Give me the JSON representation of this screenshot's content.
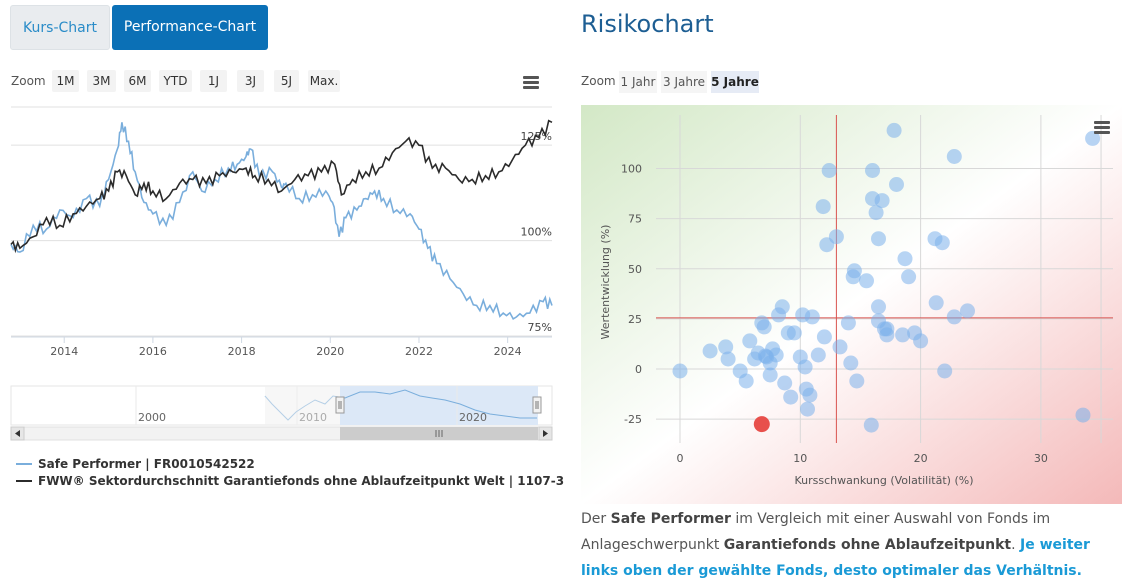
{
  "tabs": {
    "kurs": "Kurs-Chart",
    "performance": "Performance-Chart"
  },
  "perf_zoom": {
    "label": "Zoom",
    "buttons": [
      "1M",
      "3M",
      "6M",
      "YTD",
      "1J",
      "3J",
      "5J",
      "Max."
    ]
  },
  "perf_chart": {
    "y_ticks": [
      "125%",
      "100%",
      "75%"
    ],
    "x_ticks": [
      "2014",
      "2016",
      "2018",
      "2020",
      "2022",
      "2024"
    ],
    "navigator_ticks": [
      "2000",
      "2010",
      "2020"
    ],
    "colors": {
      "fund": "#7aaedc",
      "sector": "#2b2b2b"
    }
  },
  "legend": {
    "fund": "Safe Performer | FR0010542522",
    "sector": "FWW® Sektordurchschnitt Garantiefonds ohne Ablaufzeitpunkt Welt | 1107-3"
  },
  "risk": {
    "title": "Risikochart",
    "zoom_label": "Zoom",
    "zoom_buttons": [
      "1 Jahr",
      "3 Jahre",
      "5 Jahre"
    ],
    "active_zoom": "5 Jahre"
  },
  "chart_data": [
    {
      "type": "line",
      "title": "Performance-Chart",
      "xlabel": "",
      "ylabel": "",
      "x_range": [
        2012.8,
        2025
      ],
      "ylim": [
        75,
        135
      ],
      "y_ticks": [
        75,
        100,
        125
      ],
      "series": [
        {
          "name": "Safe Performer | FR0010542522",
          "points": [
            [
              2012.8,
              99
            ],
            [
              2013.0,
              97
            ],
            [
              2013.3,
              104
            ],
            [
              2013.6,
              103
            ],
            [
              2013.9,
              108
            ],
            [
              2014.2,
              106
            ],
            [
              2014.5,
              111
            ],
            [
              2014.8,
              109
            ],
            [
              2015.0,
              116
            ],
            [
              2015.2,
              124
            ],
            [
              2015.3,
              131
            ],
            [
              2015.45,
              126
            ],
            [
              2015.6,
              118
            ],
            [
              2015.8,
              110
            ],
            [
              2016.0,
              107
            ],
            [
              2016.3,
              104
            ],
            [
              2016.6,
              110
            ],
            [
              2016.9,
              118
            ],
            [
              2017.1,
              113
            ],
            [
              2017.4,
              116
            ],
            [
              2017.7,
              119
            ],
            [
              2017.9,
              120
            ],
            [
              2018.1,
              122
            ],
            [
              2018.2,
              124
            ],
            [
              2018.4,
              117
            ],
            [
              2018.7,
              118
            ],
            [
              2018.9,
              114
            ],
            [
              2019.0,
              115
            ],
            [
              2019.3,
              111
            ],
            [
              2019.6,
              112
            ],
            [
              2019.9,
              113
            ],
            [
              2020.05,
              110
            ],
            [
              2020.2,
              101
            ],
            [
              2020.35,
              106
            ],
            [
              2020.6,
              108
            ],
            [
              2020.8,
              111
            ],
            [
              2021.0,
              113
            ],
            [
              2021.2,
              111
            ],
            [
              2021.5,
              108
            ],
            [
              2021.8,
              107
            ],
            [
              2022.0,
              103
            ],
            [
              2022.2,
              98
            ],
            [
              2022.4,
              94
            ],
            [
              2022.7,
              90
            ],
            [
              2023.0,
              86
            ],
            [
              2023.3,
              83
            ],
            [
              2023.6,
              83
            ],
            [
              2023.9,
              81
            ],
            [
              2024.2,
              80
            ],
            [
              2024.5,
              81
            ],
            [
              2024.8,
              84
            ],
            [
              2025.0,
              83
            ]
          ]
        },
        {
          "name": "FWW® Sektordurchschnitt Garantiefonds ohne Ablaufzeitpunkt Welt | 1107-3",
          "points": [
            [
              2012.8,
              99
            ],
            [
              2013.0,
              98
            ],
            [
              2013.3,
              101
            ],
            [
              2013.6,
              106
            ],
            [
              2013.9,
              104
            ],
            [
              2014.2,
              107
            ],
            [
              2014.5,
              109
            ],
            [
              2014.8,
              111
            ],
            [
              2015.0,
              113
            ],
            [
              2015.2,
              118
            ],
            [
              2015.4,
              117
            ],
            [
              2015.6,
              112
            ],
            [
              2015.8,
              115
            ],
            [
              2016.0,
              113
            ],
            [
              2016.3,
              111
            ],
            [
              2016.6,
              115
            ],
            [
              2016.9,
              116
            ],
            [
              2017.2,
              115
            ],
            [
              2017.5,
              117
            ],
            [
              2017.8,
              118
            ],
            [
              2018.1,
              119
            ],
            [
              2018.3,
              117
            ],
            [
              2018.6,
              116
            ],
            [
              2018.9,
              113
            ],
            [
              2019.2,
              116
            ],
            [
              2019.5,
              117
            ],
            [
              2019.8,
              118
            ],
            [
              2020.1,
              120
            ],
            [
              2020.25,
              112
            ],
            [
              2020.5,
              116
            ],
            [
              2020.8,
              118
            ],
            [
              2021.1,
              119
            ],
            [
              2021.4,
              123
            ],
            [
              2021.7,
              126
            ],
            [
              2022.0,
              125
            ],
            [
              2022.3,
              119
            ],
            [
              2022.6,
              119
            ],
            [
              2022.9,
              116
            ],
            [
              2023.2,
              116
            ],
            [
              2023.5,
              117
            ],
            [
              2023.8,
              118
            ],
            [
              2024.1,
              121
            ],
            [
              2024.4,
              125
            ],
            [
              2024.7,
              127
            ],
            [
              2025.0,
              131
            ]
          ]
        }
      ]
    },
    {
      "type": "scatter",
      "title": "Risikochart",
      "xlabel": "Kursschwankung (Volatilität) (%)",
      "ylabel": "Wertentwicklung (%)",
      "xlim": [
        -2.5,
        36
      ],
      "ylim": [
        -35,
        128
      ],
      "x_ticks": [
        0,
        10,
        20,
        30
      ],
      "y_ticks": [
        -25,
        0,
        25,
        50,
        75,
        100
      ],
      "reference_lines": {
        "x": 13.0,
        "y": 25.5
      },
      "highlight": {
        "name": "Safe Performer",
        "x": 6.8,
        "y": -27.5,
        "color": "#e8504c"
      },
      "points": [
        [
          0,
          -1
        ],
        [
          2.5,
          9
        ],
        [
          3.8,
          11
        ],
        [
          4.0,
          5
        ],
        [
          5.0,
          -1
        ],
        [
          5.5,
          -6
        ],
        [
          5.8,
          14
        ],
        [
          6.5,
          8
        ],
        [
          6.8,
          23
        ],
        [
          7.0,
          21
        ],
        [
          7.2,
          6
        ],
        [
          7.5,
          3
        ],
        [
          7.5,
          -3
        ],
        [
          7.7,
          10
        ],
        [
          8.0,
          7
        ],
        [
          8.2,
          27
        ],
        [
          8.5,
          31
        ],
        [
          8.7,
          -7
        ],
        [
          9.0,
          18
        ],
        [
          9.5,
          18
        ],
        [
          10.0,
          6
        ],
        [
          10.2,
          27
        ],
        [
          10.4,
          1
        ],
        [
          10.5,
          -10
        ],
        [
          10.6,
          -20
        ],
        [
          10.8,
          -13
        ],
        [
          11.0,
          26
        ],
        [
          11.5,
          7
        ],
        [
          11.9,
          81
        ],
        [
          12.2,
          62
        ],
        [
          12.4,
          99
        ],
        [
          13.0,
          66
        ],
        [
          13.3,
          11
        ],
        [
          14.0,
          23
        ],
        [
          14.2,
          3
        ],
        [
          14.4,
          46
        ],
        [
          14.5,
          49
        ],
        [
          14.7,
          -6
        ],
        [
          15.5,
          44
        ],
        [
          15.9,
          -28
        ],
        [
          16.0,
          99
        ],
        [
          16.0,
          85
        ],
        [
          16.3,
          78
        ],
        [
          16.5,
          65
        ],
        [
          16.5,
          24
        ],
        [
          16.5,
          31
        ],
        [
          16.8,
          84
        ],
        [
          17.0,
          20
        ],
        [
          17.2,
          17
        ],
        [
          17.2,
          20
        ],
        [
          17.8,
          119
        ],
        [
          18.0,
          92
        ],
        [
          18.5,
          17
        ],
        [
          18.7,
          55
        ],
        [
          19.0,
          46
        ],
        [
          19.5,
          18
        ],
        [
          20.0,
          14
        ],
        [
          21.2,
          65
        ],
        [
          21.3,
          33
        ],
        [
          21.8,
          63
        ],
        [
          22.0,
          -1
        ],
        [
          22.8,
          106
        ],
        [
          22.8,
          26
        ],
        [
          23.9,
          29
        ],
        [
          33.5,
          -23
        ],
        [
          34.3,
          115
        ],
        [
          12.0,
          16
        ],
        [
          9.2,
          -14
        ],
        [
          6.2,
          5
        ],
        [
          7.1,
          6.5
        ]
      ]
    }
  ]
}
